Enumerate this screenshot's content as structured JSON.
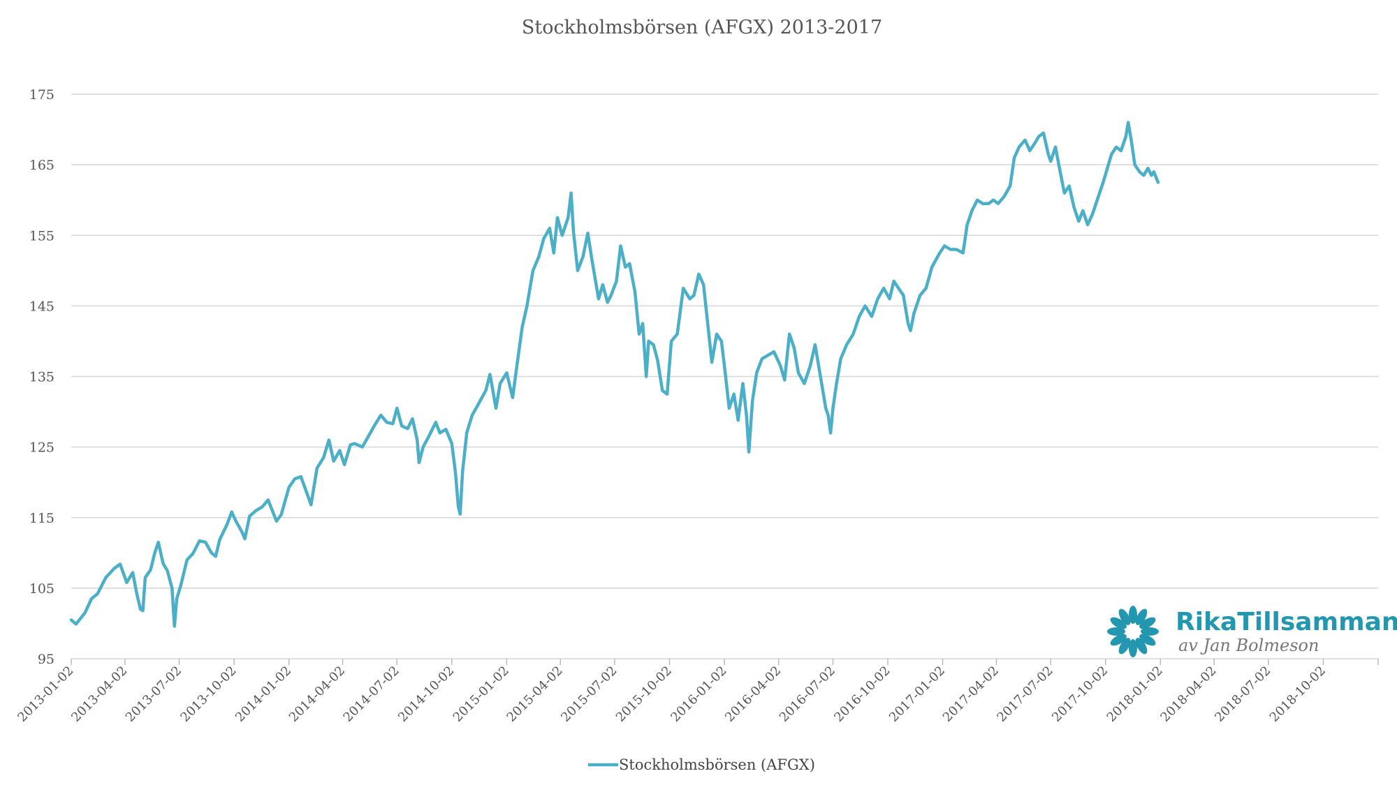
{
  "colors": {
    "series": "#4aafc7",
    "grid": "#d6d6d6",
    "text": "#555555",
    "logo": "#2396b0",
    "logo_sub": "#777777"
  },
  "logo": {
    "name": "RikaTillsammans",
    "byline": "av Jan Bolmeson",
    "icon": "flower-icon"
  },
  "chart_data": {
    "type": "line",
    "title": "Stockholmsbörsen (AFGX) 2013-2017",
    "xlabel": "",
    "ylabel": "",
    "ylim": [
      95,
      175
    ],
    "y_ticks": [
      95,
      105,
      115,
      125,
      135,
      145,
      155,
      165,
      175
    ],
    "x_range": [
      "2013-01-02",
      "2019-01-02"
    ],
    "x_tick_labels": [
      "2013-01-02",
      "2013-04-02",
      "2013-07-02",
      "2013-10-02",
      "2014-01-02",
      "2014-04-02",
      "2014-07-02",
      "2014-10-02",
      "2015-01-02",
      "2015-04-02",
      "2015-07-02",
      "2015-10-02",
      "2016-01-02",
      "2016-04-02",
      "2016-07-02",
      "2016-10-02",
      "2017-01-02",
      "2017-04-02",
      "2017-07-02",
      "2017-10-02",
      "2018-01-02",
      "2018-04-02",
      "2018-07-02",
      "2018-10-02"
    ],
    "grid": "horizontal",
    "legend": "bottom-center",
    "series": [
      {
        "name": "Stockholmsbörsen (AFGX)",
        "points": [
          [
            "2013-01-02",
            100.5
          ],
          [
            "2013-01-10",
            99.9
          ],
          [
            "2013-01-25",
            101.5
          ],
          [
            "2013-02-05",
            103.5
          ],
          [
            "2013-02-15",
            104.2
          ],
          [
            "2013-03-01",
            106.5
          ],
          [
            "2013-03-15",
            107.8
          ],
          [
            "2013-03-25",
            108.4
          ],
          [
            "2013-04-05",
            105.8
          ],
          [
            "2013-04-15",
            107.2
          ],
          [
            "2013-04-22",
            104.2
          ],
          [
            "2013-04-28",
            102.0
          ],
          [
            "2013-05-02",
            101.8
          ],
          [
            "2013-05-06",
            106.5
          ],
          [
            "2013-05-15",
            107.6
          ],
          [
            "2013-05-22",
            110.0
          ],
          [
            "2013-05-28",
            111.5
          ],
          [
            "2013-06-05",
            108.5
          ],
          [
            "2013-06-12",
            107.5
          ],
          [
            "2013-06-20",
            105.0
          ],
          [
            "2013-06-24",
            99.6
          ],
          [
            "2013-06-28",
            103.5
          ],
          [
            "2013-07-05",
            105.5
          ],
          [
            "2013-07-15",
            109.0
          ],
          [
            "2013-07-25",
            109.9
          ],
          [
            "2013-08-05",
            111.7
          ],
          [
            "2013-08-15",
            111.5
          ],
          [
            "2013-08-25",
            110.0
          ],
          [
            "2013-09-01",
            109.5
          ],
          [
            "2013-09-08",
            111.9
          ],
          [
            "2013-09-20",
            114.0
          ],
          [
            "2013-09-28",
            115.8
          ],
          [
            "2013-10-05",
            114.5
          ],
          [
            "2013-10-15",
            113.0
          ],
          [
            "2013-10-20",
            112.0
          ],
          [
            "2013-10-28",
            115.2
          ],
          [
            "2013-11-08",
            116.0
          ],
          [
            "2013-11-18",
            116.5
          ],
          [
            "2013-11-28",
            117.5
          ],
          [
            "2013-12-05",
            116.0
          ],
          [
            "2013-12-12",
            114.5
          ],
          [
            "2013-12-20",
            115.4
          ],
          [
            "2014-01-02",
            119.3
          ],
          [
            "2014-01-12",
            120.5
          ],
          [
            "2014-01-22",
            120.8
          ],
          [
            "2014-02-03",
            118.0
          ],
          [
            "2014-02-08",
            116.8
          ],
          [
            "2014-02-18",
            122.0
          ],
          [
            "2014-03-01",
            123.5
          ],
          [
            "2014-03-10",
            126.0
          ],
          [
            "2014-03-18",
            123.0
          ],
          [
            "2014-03-28",
            124.5
          ],
          [
            "2014-04-05",
            122.5
          ],
          [
            "2014-04-15",
            125.3
          ],
          [
            "2014-04-22",
            125.5
          ],
          [
            "2014-05-05",
            125.0
          ],
          [
            "2014-05-15",
            126.5
          ],
          [
            "2014-05-25",
            128.0
          ],
          [
            "2014-06-05",
            129.5
          ],
          [
            "2014-06-15",
            128.5
          ],
          [
            "2014-06-25",
            128.3
          ],
          [
            "2014-07-02",
            130.5
          ],
          [
            "2014-07-10",
            128.0
          ],
          [
            "2014-07-20",
            127.6
          ],
          [
            "2014-07-28",
            129.0
          ],
          [
            "2014-08-05",
            126.0
          ],
          [
            "2014-08-08",
            122.8
          ],
          [
            "2014-08-15",
            125.0
          ],
          [
            "2014-08-25",
            126.6
          ],
          [
            "2014-09-05",
            128.5
          ],
          [
            "2014-09-12",
            127.0
          ],
          [
            "2014-09-22",
            127.5
          ],
          [
            "2014-10-02",
            125.5
          ],
          [
            "2014-10-08",
            121.5
          ],
          [
            "2014-10-13",
            116.5
          ],
          [
            "2014-10-16",
            115.5
          ],
          [
            "2014-10-20",
            121.5
          ],
          [
            "2014-10-27",
            127.0
          ],
          [
            "2014-11-05",
            129.5
          ],
          [
            "2014-11-15",
            131.0
          ],
          [
            "2014-11-28",
            133.0
          ],
          [
            "2014-12-05",
            135.3
          ],
          [
            "2014-12-15",
            130.5
          ],
          [
            "2014-12-22",
            134.0
          ],
          [
            "2015-01-02",
            135.5
          ],
          [
            "2015-01-12",
            132.0
          ],
          [
            "2015-01-18",
            135.8
          ],
          [
            "2015-01-28",
            142.0
          ],
          [
            "2015-02-05",
            145.0
          ],
          [
            "2015-02-15",
            150.0
          ],
          [
            "2015-02-25",
            152.0
          ],
          [
            "2015-03-05",
            154.5
          ],
          [
            "2015-03-15",
            156.0
          ],
          [
            "2015-03-22",
            152.5
          ],
          [
            "2015-03-28",
            157.5
          ],
          [
            "2015-04-05",
            155.0
          ],
          [
            "2015-04-15",
            157.5
          ],
          [
            "2015-04-20",
            161.0
          ],
          [
            "2015-04-24",
            155.5
          ],
          [
            "2015-05-01",
            150.0
          ],
          [
            "2015-05-10",
            152.0
          ],
          [
            "2015-05-18",
            155.3
          ],
          [
            "2015-05-25",
            151.5
          ],
          [
            "2015-06-05",
            146.0
          ],
          [
            "2015-06-12",
            148.0
          ],
          [
            "2015-06-20",
            145.5
          ],
          [
            "2015-06-26",
            146.5
          ],
          [
            "2015-07-05",
            148.5
          ],
          [
            "2015-07-12",
            153.5
          ],
          [
            "2015-07-20",
            150.5
          ],
          [
            "2015-07-27",
            151.0
          ],
          [
            "2015-08-05",
            147.0
          ],
          [
            "2015-08-12",
            141.0
          ],
          [
            "2015-08-18",
            142.5
          ],
          [
            "2015-08-24",
            135.0
          ],
          [
            "2015-08-28",
            140.0
          ],
          [
            "2015-09-05",
            139.5
          ],
          [
            "2015-09-12",
            137.3
          ],
          [
            "2015-09-20",
            133.0
          ],
          [
            "2015-09-28",
            132.5
          ],
          [
            "2015-10-05",
            140.0
          ],
          [
            "2015-10-15",
            141.0
          ],
          [
            "2015-10-25",
            147.5
          ],
          [
            "2015-11-05",
            146.0
          ],
          [
            "2015-11-12",
            146.5
          ],
          [
            "2015-11-20",
            149.5
          ],
          [
            "2015-11-28",
            148.0
          ],
          [
            "2015-12-05",
            142.5
          ],
          [
            "2015-12-12",
            137.0
          ],
          [
            "2015-12-20",
            141.0
          ],
          [
            "2015-12-28",
            140.0
          ],
          [
            "2016-01-02",
            136.5
          ],
          [
            "2016-01-10",
            130.5
          ],
          [
            "2016-01-18",
            132.5
          ],
          [
            "2016-01-25",
            128.8
          ],
          [
            "2016-02-02",
            134.0
          ],
          [
            "2016-02-08",
            129.5
          ],
          [
            "2016-02-12",
            124.3
          ],
          [
            "2016-02-18",
            131.5
          ],
          [
            "2016-02-25",
            135.5
          ],
          [
            "2016-03-05",
            137.5
          ],
          [
            "2016-03-15",
            138.0
          ],
          [
            "2016-03-25",
            138.5
          ],
          [
            "2016-04-05",
            136.5
          ],
          [
            "2016-04-12",
            134.5
          ],
          [
            "2016-04-20",
            141.0
          ],
          [
            "2016-04-28",
            139.0
          ],
          [
            "2016-05-05",
            135.5
          ],
          [
            "2016-05-15",
            134.0
          ],
          [
            "2016-05-25",
            136.5
          ],
          [
            "2016-06-02",
            139.5
          ],
          [
            "2016-06-08",
            136.5
          ],
          [
            "2016-06-15",
            133.0
          ],
          [
            "2016-06-20",
            130.5
          ],
          [
            "2016-06-24",
            129.5
          ],
          [
            "2016-06-28",
            127.0
          ],
          [
            "2016-07-02",
            130.5
          ],
          [
            "2016-07-08",
            134.0
          ],
          [
            "2016-07-15",
            137.5
          ],
          [
            "2016-07-25",
            139.5
          ],
          [
            "2016-08-05",
            141.0
          ],
          [
            "2016-08-15",
            143.5
          ],
          [
            "2016-08-25",
            145.0
          ],
          [
            "2016-09-05",
            143.5
          ],
          [
            "2016-09-15",
            146.0
          ],
          [
            "2016-09-25",
            147.5
          ],
          [
            "2016-10-05",
            146.0
          ],
          [
            "2016-10-12",
            148.5
          ],
          [
            "2016-10-20",
            147.5
          ],
          [
            "2016-10-28",
            146.5
          ],
          [
            "2016-11-05",
            142.5
          ],
          [
            "2016-11-09",
            141.5
          ],
          [
            "2016-11-15",
            144.0
          ],
          [
            "2016-11-25",
            146.5
          ],
          [
            "2016-12-05",
            147.5
          ],
          [
            "2016-12-15",
            150.5
          ],
          [
            "2016-12-28",
            152.5
          ],
          [
            "2017-01-05",
            153.5
          ],
          [
            "2017-01-15",
            153.0
          ],
          [
            "2017-01-25",
            153.0
          ],
          [
            "2017-02-05",
            152.5
          ],
          [
            "2017-02-12",
            156.5
          ],
          [
            "2017-02-20",
            158.5
          ],
          [
            "2017-03-01",
            160.0
          ],
          [
            "2017-03-10",
            159.5
          ],
          [
            "2017-03-20",
            159.5
          ],
          [
            "2017-03-28",
            160.0
          ],
          [
            "2017-04-05",
            159.5
          ],
          [
            "2017-04-15",
            160.5
          ],
          [
            "2017-04-25",
            162.0
          ],
          [
            "2017-05-02",
            166.0
          ],
          [
            "2017-05-10",
            167.5
          ],
          [
            "2017-05-20",
            168.5
          ],
          [
            "2017-05-28",
            167.0
          ],
          [
            "2017-06-05",
            168.0
          ],
          [
            "2017-06-12",
            169.0
          ],
          [
            "2017-06-20",
            169.5
          ],
          [
            "2017-06-28",
            166.5
          ],
          [
            "2017-07-02",
            165.5
          ],
          [
            "2017-07-10",
            167.5
          ],
          [
            "2017-07-18",
            164.0
          ],
          [
            "2017-07-25",
            161.0
          ],
          [
            "2017-08-02",
            162.0
          ],
          [
            "2017-08-10",
            159.0
          ],
          [
            "2017-08-18",
            157.0
          ],
          [
            "2017-08-25",
            158.5
          ],
          [
            "2017-09-02",
            156.5
          ],
          [
            "2017-09-10",
            158.0
          ],
          [
            "2017-09-20",
            160.5
          ],
          [
            "2017-09-28",
            162.5
          ],
          [
            "2017-10-05",
            164.5
          ],
          [
            "2017-10-12",
            166.5
          ],
          [
            "2017-10-20",
            167.5
          ],
          [
            "2017-10-28",
            167.0
          ],
          [
            "2017-11-05",
            169.0
          ],
          [
            "2017-11-09",
            171.0
          ],
          [
            "2017-11-14",
            168.5
          ],
          [
            "2017-11-20",
            165.0
          ],
          [
            "2017-11-28",
            164.0
          ],
          [
            "2017-12-05",
            163.5
          ],
          [
            "2017-12-12",
            164.5
          ],
          [
            "2017-12-18",
            163.5
          ],
          [
            "2017-12-22",
            164.0
          ],
          [
            "2017-12-29",
            162.5
          ]
        ]
      }
    ]
  }
}
